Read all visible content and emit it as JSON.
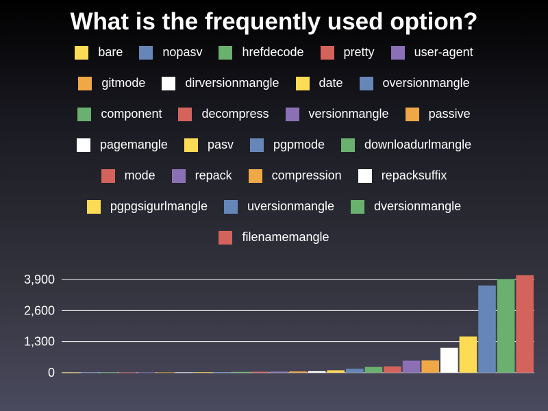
{
  "title": "What is the frequently used option?",
  "colors": {
    "yellow": "#fedb55",
    "blue": "#6686b8",
    "green": "#6ab06e",
    "red": "#d4635c",
    "purple": "#8c70b5",
    "orange": "#f0a846",
    "white": "#ffffff"
  },
  "chart_data": {
    "type": "bar",
    "title": "What is the frequently used option?",
    "xlabel": "",
    "ylabel": "",
    "ylim": [
      0,
      3900
    ],
    "yticks": [
      0,
      1300,
      2600,
      3900
    ],
    "ytick_labels": [
      "0",
      "1,300",
      "2,600",
      "3,900"
    ],
    "grid": true,
    "legend_position": "top",
    "categories": [
      "bare",
      "nopasv",
      "hrefdecode",
      "pretty",
      "user-agent",
      "gitmode",
      "dirversionmangle",
      "date",
      "oversionmangle",
      "component",
      "decompress",
      "versionmangle",
      "passive",
      "pagemangle",
      "pasv",
      "pgpmode",
      "downloadurlmangle",
      "mode",
      "repack",
      "compression",
      "repacksuffix",
      "pgpgsigurlmangle",
      "uversionmangle",
      "dversionmangle",
      "filenamemangle"
    ],
    "series_colors": [
      "yellow",
      "blue",
      "green",
      "red",
      "purple",
      "orange",
      "white",
      "yellow",
      "blue",
      "green",
      "red",
      "purple",
      "orange",
      "white",
      "yellow",
      "blue",
      "green",
      "red",
      "purple",
      "orange",
      "white",
      "yellow",
      "blue",
      "green",
      "red"
    ],
    "values": [
      3,
      5,
      8,
      10,
      12,
      15,
      18,
      22,
      28,
      35,
      40,
      45,
      50,
      60,
      100,
      160,
      240,
      260,
      500,
      510,
      1040,
      1510,
      3650,
      3920,
      4080
    ]
  }
}
